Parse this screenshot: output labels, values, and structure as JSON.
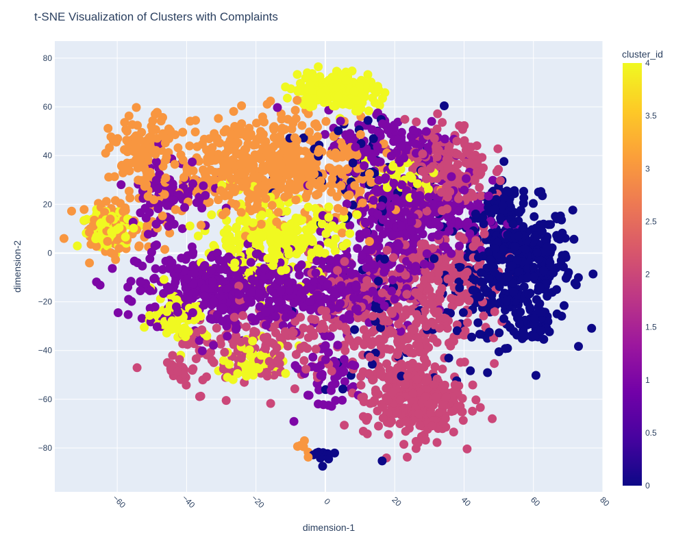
{
  "chart_data": {
    "type": "scatter",
    "title": "t-SNE Visualization of Clusters with Complaints",
    "xlabel": "dimension-1",
    "ylabel": "dimension-2",
    "xlim": [
      -78,
      80
    ],
    "ylim": [
      -98,
      87
    ],
    "x_ticks": [
      "−60",
      "−40",
      "−20",
      "0",
      "20",
      "40",
      "60",
      "80"
    ],
    "y_ticks": [
      "80",
      "60",
      "40",
      "20",
      "0",
      "−20",
      "−40",
      "−60",
      "−80"
    ],
    "colorbar": {
      "title": "cluster_id",
      "range": [
        0,
        4
      ],
      "tick_labels": [
        "0",
        "0.5",
        "1",
        "1.5",
        "2",
        "2.5",
        "3",
        "3.5",
        "4"
      ]
    },
    "colorscale": [
      "#0d0887",
      "#46039f",
      "#7201a8",
      "#9c179e",
      "#bd3786",
      "#d8576b",
      "#ed7953",
      "#fb9f3a",
      "#fdca26",
      "#f0f921"
    ],
    "grid": true,
    "clusters": [
      {
        "cluster_id": 0,
        "regions": [
          {
            "cx": 55,
            "cy": -5,
            "sx": 8,
            "sy": 13,
            "n": 420
          },
          {
            "cx": 50,
            "cy": 20,
            "sx": 3,
            "sy": 4,
            "n": 40
          },
          {
            "cx": 60,
            "cy": -30,
            "sx": 3,
            "sy": 3,
            "n": 30
          },
          {
            "cx": 25,
            "cy": -25,
            "sx": 15,
            "sy": 15,
            "n": 70
          },
          {
            "cx": -2,
            "cy": -83,
            "sx": 2,
            "sy": 2,
            "n": 10
          },
          {
            "cx": 10,
            "cy": 30,
            "sx": 12,
            "sy": 15,
            "n": 60
          }
        ]
      },
      {
        "cluster_id": 1,
        "regions": [
          {
            "cx": -30,
            "cy": -15,
            "sx": 12,
            "sy": 8,
            "n": 420
          },
          {
            "cx": 25,
            "cy": 15,
            "sx": 10,
            "sy": 10,
            "n": 380
          },
          {
            "cx": 5,
            "cy": -15,
            "sx": 10,
            "sy": 8,
            "n": 260
          },
          {
            "cx": 20,
            "cy": 45,
            "sx": 10,
            "sy": 7,
            "n": 120
          },
          {
            "cx": -45,
            "cy": 25,
            "sx": 6,
            "sy": 8,
            "n": 90
          },
          {
            "cx": 0,
            "cy": -50,
            "sx": 6,
            "sy": 8,
            "n": 50
          }
        ]
      },
      {
        "cluster_id": 2,
        "regions": [
          {
            "cx": 25,
            "cy": -60,
            "sx": 7,
            "sy": 8,
            "n": 300
          },
          {
            "cx": 20,
            "cy": -25,
            "sx": 12,
            "sy": 12,
            "n": 300
          },
          {
            "cx": 35,
            "cy": 35,
            "sx": 6,
            "sy": 9,
            "n": 180
          },
          {
            "cx": -20,
            "cy": -40,
            "sx": 12,
            "sy": 8,
            "n": 160
          },
          {
            "cx": -43,
            "cy": -49,
            "sx": 2,
            "sy": 2,
            "n": 25
          },
          {
            "cx": 35,
            "cy": -5,
            "sx": 8,
            "sy": 8,
            "n": 100
          }
        ]
      },
      {
        "cluster_id": 3,
        "regions": [
          {
            "cx": -18,
            "cy": 35,
            "sx": 12,
            "sy": 10,
            "n": 520
          },
          {
            "cx": -52,
            "cy": 40,
            "sx": 5,
            "sy": 8,
            "n": 120
          },
          {
            "cx": -60,
            "cy": 10,
            "sx": 6,
            "sy": 6,
            "n": 80
          },
          {
            "cx": 8,
            "cy": 30,
            "sx": 5,
            "sy": 8,
            "n": 60
          },
          {
            "cx": -6,
            "cy": -80,
            "sx": 1.5,
            "sy": 1.5,
            "n": 6
          }
        ]
      },
      {
        "cluster_id": 4,
        "regions": [
          {
            "cx": 3,
            "cy": 67,
            "sx": 6,
            "sy": 4,
            "n": 200
          },
          {
            "cx": -15,
            "cy": 5,
            "sx": 10,
            "sy": 8,
            "n": 280
          },
          {
            "cx": -62,
            "cy": 10,
            "sx": 4,
            "sy": 4,
            "n": 80
          },
          {
            "cx": -42,
            "cy": -25,
            "sx": 4,
            "sy": 5,
            "n": 70
          },
          {
            "cx": -20,
            "cy": -45,
            "sx": 5,
            "sy": 4,
            "n": 60
          },
          {
            "cx": 22,
            "cy": 30,
            "sx": 5,
            "sy": 5,
            "n": 50
          }
        ]
      }
    ]
  }
}
